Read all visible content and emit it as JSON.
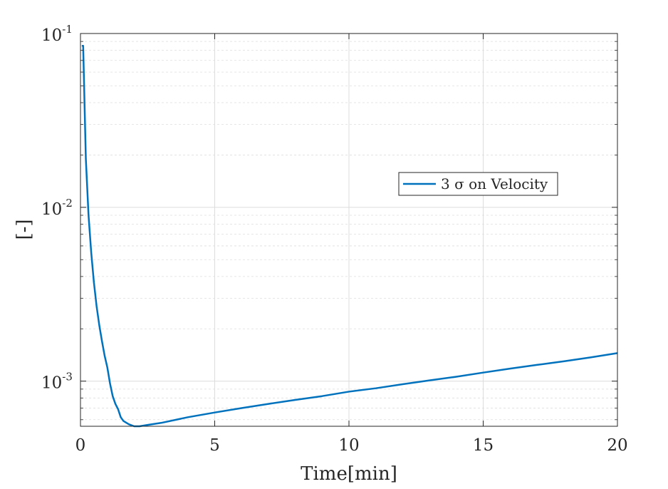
{
  "chart_data": {
    "type": "line",
    "title": "",
    "xlabel": "Time[min]",
    "ylabel": "[-]",
    "xlim": [
      0,
      20
    ],
    "ylim": [
      0.00055,
      0.1
    ],
    "yscale": "log",
    "grid": true,
    "minor_grid": true,
    "legend_position": "inside right",
    "x_ticks": [
      0,
      5,
      10,
      15,
      20
    ],
    "x_tick_labels": [
      "0",
      "5",
      "10",
      "15",
      "20"
    ],
    "y_ticks": [
      0.001,
      0.01,
      0.1
    ],
    "y_tick_labels": [
      {
        "base": "10",
        "exp": "-3"
      },
      {
        "base": "10",
        "exp": "-2"
      },
      {
        "base": "10",
        "exp": "-1"
      }
    ],
    "series": [
      {
        "name": "3 σ on Velocity",
        "color": "#0072BD",
        "x": [
          0.05,
          0.1,
          0.15,
          0.2,
          0.3,
          0.4,
          0.5,
          0.6,
          0.7,
          0.8,
          0.9,
          1.0,
          1.1,
          1.2,
          1.3,
          1.4,
          1.5,
          1.6,
          1.8,
          2.0,
          2.2,
          2.5,
          3.0,
          4.0,
          5.0,
          6.0,
          7.0,
          8.0,
          9.0,
          10.0,
          11.0,
          12.0,
          13.0,
          14.0,
          15.0,
          16.0,
          17.0,
          18.0,
          19.0,
          20.0
        ],
        "y": [
          0.085,
          0.085,
          0.04,
          0.019,
          0.009,
          0.0055,
          0.0037,
          0.0027,
          0.0021,
          0.0017,
          0.0014,
          0.0012,
          0.00097,
          0.00082,
          0.00074,
          0.00069,
          0.00062,
          0.00059,
          0.000565,
          0.00055,
          0.00055,
          0.00056,
          0.000575,
          0.00062,
          0.00066,
          0.0007,
          0.00074,
          0.00078,
          0.00082,
          0.00087,
          0.00091,
          0.00096,
          0.00101,
          0.00106,
          0.00112,
          0.00118,
          0.00124,
          0.0013,
          0.00137,
          0.00145
        ]
      }
    ]
  }
}
